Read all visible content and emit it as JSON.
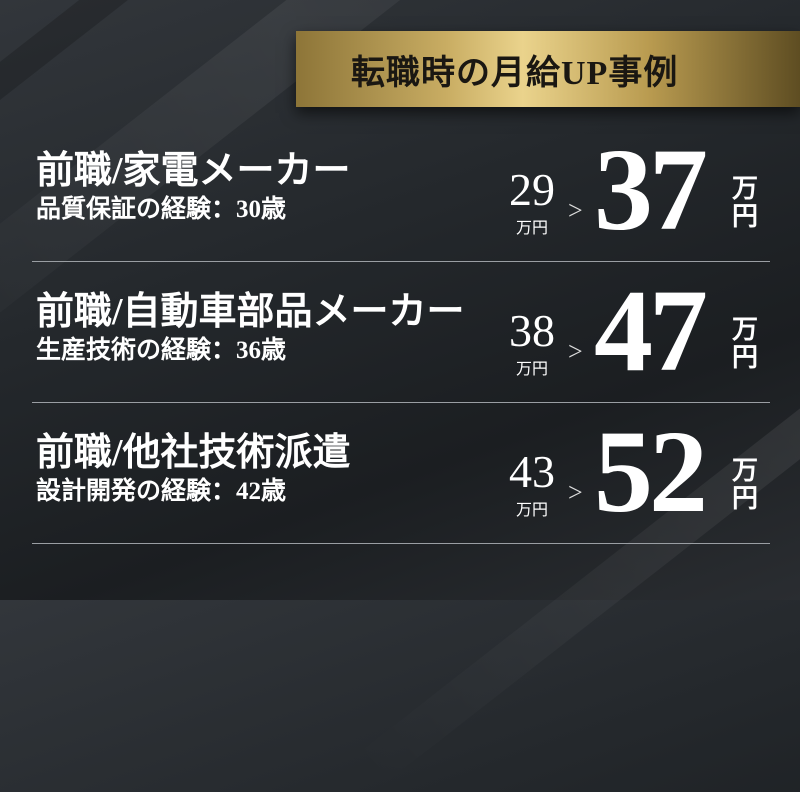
{
  "heading": "転職時の月給UP事例",
  "unit": "万円",
  "unit_top": "万",
  "unit_bottom": "円",
  "arrow": ">",
  "cases": [
    {
      "title": "前職/家電メーカー",
      "detail": "品質保証の経験：30歳",
      "before": "29",
      "after": "37"
    },
    {
      "title": "前職/自動車部品メーカー",
      "detail": "生産技術の経験：36歳",
      "before": "38",
      "after": "47"
    },
    {
      "title": "前職/他社技術派遣",
      "detail": "設計開発の経験：42歳",
      "before": "43",
      "after": "52"
    }
  ],
  "colors": {
    "gold": "#c9ad63",
    "background": "#24282c",
    "text": "#ffffff"
  }
}
